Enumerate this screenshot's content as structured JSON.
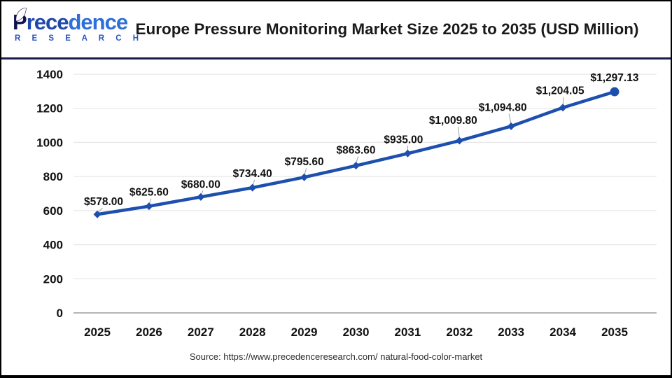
{
  "logo": {
    "brand_first": "P",
    "brand_mid": "rece",
    "brand_end": "dence",
    "sub": "R E S E A R C H",
    "leaf_icon": "leaf-icon"
  },
  "header": {
    "title": "Europe Pressure Monitoring Market Size 2025 to 2035 (USD Million)"
  },
  "footer": {
    "source": "Source: https://www.precedenceresearch.com/ natural-food-color-market"
  },
  "colors": {
    "line": "#1d4fae",
    "marker": "#1d4fae",
    "grid": "#e8e8e8",
    "baseline": "#b5b5b5",
    "leader": "#9aa0a6",
    "tick_text": "#111111",
    "data_label": "#111111",
    "divider": "#1b1b4f",
    "brand_blue": "#2553c0"
  },
  "chart_data": {
    "type": "line",
    "title": "Europe Pressure Monitoring Market Size 2025 to 2035 (USD Million)",
    "categories": [
      "2025",
      "2026",
      "2027",
      "2028",
      "2029",
      "2030",
      "2031",
      "2032",
      "2033",
      "2034",
      "2035"
    ],
    "values": [
      578.0,
      625.6,
      680.0,
      734.4,
      795.6,
      863.6,
      935.0,
      1009.8,
      1094.8,
      1204.05,
      1297.13
    ],
    "point_labels": [
      "$578.00",
      "$625.60",
      "$680.00",
      "$734.40",
      "$795.60",
      "$863.60",
      "$935.00",
      "$1,009.80",
      "$1,094.80",
      "$1,204.05",
      "$1,297.13"
    ],
    "yticks": [
      0,
      200,
      400,
      600,
      800,
      1000,
      1200,
      1400
    ],
    "ylim": [
      0,
      1400
    ],
    "xlabel": "",
    "ylabel": "",
    "grid": true,
    "legend": "none",
    "series_name": "Europe Pressure Monitoring Market Size (USD Million)"
  }
}
